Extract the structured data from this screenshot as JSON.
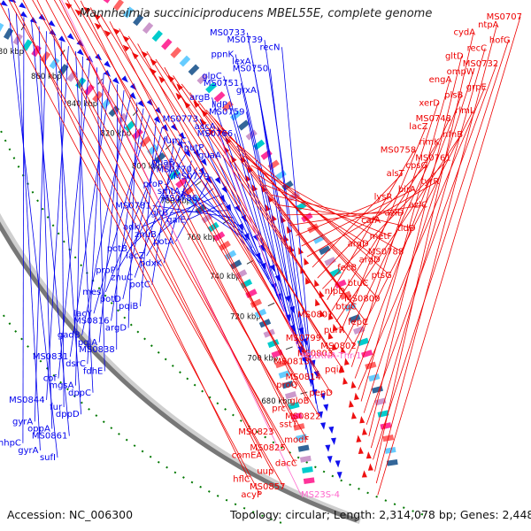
{
  "title": "Mannheimia succiniciproducens MBEL55E, complete genome",
  "accession": "Accession: NC_006300",
  "summary": "Topology: circular; Length: 2,314,078 bp; Genes: 2,448",
  "colors": {
    "forward_label": "#0000ee",
    "reverse_label": "#ee0000",
    "rna_label": "#ff66cc",
    "backbone": "#777777",
    "tick": "#007700"
  },
  "ticks": [
    "680 kbp",
    "700 kbp",
    "720 kbp",
    "740 kbp",
    "760 kbp",
    "780 kbp",
    "800 kbp",
    "820 kbp",
    "840 kbp",
    "860 kbp",
    "880 kbp"
  ],
  "forward_labels": [
    "MS0733",
    "MS0739",
    "recN",
    "ppnK",
    "lexA",
    "MS0750",
    "glpC",
    "MS0751",
    "grxA",
    "argB",
    "lldP",
    "MS0759",
    "MS0773",
    "accA",
    "MS0766",
    "fumC",
    "putP",
    "guaA",
    "guaB",
    "MS0770",
    "MS0779",
    "proP",
    "smtA",
    "MS0786",
    "MS0781",
    "gltB",
    "galE",
    "adk",
    "znuB",
    "potA",
    "potB",
    "lacZ",
    "pdxK",
    "proP",
    "znuC",
    "potC",
    "mesJ",
    "potD",
    "pqiB",
    "lacY",
    "MS0816",
    "argD",
    "gadB",
    "pqiA",
    "MS0838",
    "MS0831",
    "dsrC",
    "fdhE",
    "cof",
    "mgsA",
    "dppC",
    "MS0844",
    "fur",
    "dppD",
    "gyrA",
    "oppA",
    "MS0861",
    "mhpC",
    "gyrA",
    "sufI"
  ],
  "reverse_labels": [
    "MS0707",
    "ntpA",
    "cydA",
    "hofG",
    "recC",
    "gltD",
    "MS0732",
    "ompW",
    "engA",
    "grpE",
    "plsB",
    "xerD",
    "rlmL",
    "MS0748",
    "lacZ",
    "nfnB",
    "rimK",
    "MS0758",
    "MS0761",
    "cpsG",
    "alsT",
    "tyrR",
    "birA",
    "lysR",
    "azlC",
    "azlD",
    "cafA",
    "tldD",
    "metF",
    "argD",
    "MS0788",
    "argD",
    "fecB",
    "ptsG",
    "btuC",
    "nlpD",
    "MS0800",
    "btuC",
    "MS0801",
    "fepC",
    "purR",
    "MS0799",
    "MS0802",
    "MS0803",
    "MS0813",
    "pqiA",
    "MS0814",
    "proQ",
    "pepD",
    "gloB",
    "prc",
    "MS0822",
    "sstT",
    "MS0823",
    "modF",
    "MS0825",
    "comEA",
    "dacC",
    "uup",
    "hflC",
    "MS0857",
    "acyP"
  ],
  "rna_labels": [
    "MStRNA-Thr-1",
    "MS23S-4"
  ]
}
